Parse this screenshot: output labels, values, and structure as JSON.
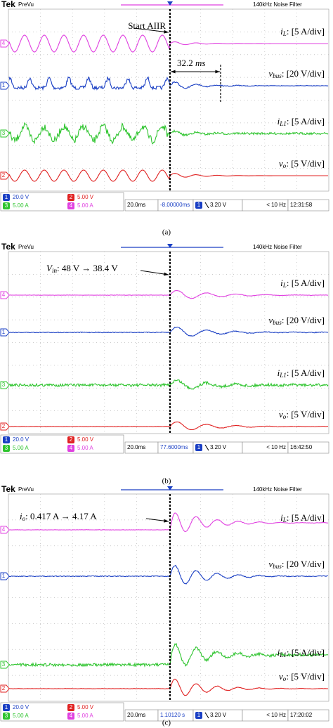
{
  "panels": [
    {
      "caption": "(a)",
      "header": {
        "brand": "Tek",
        "mode": "PreVu",
        "filter": "140kHz  Noise Filter"
      },
      "markers": [
        "4",
        "1",
        "3",
        "2"
      ],
      "traces": [
        {
          "symbol": "i",
          "sub": "L",
          "scale": ": [5 A/div]"
        },
        {
          "symbol": "v",
          "sub": "bus",
          "scale": ": [20 V/div]"
        },
        {
          "symbol": "i",
          "sub": "L1",
          "scale": ": [5 A/div]"
        },
        {
          "symbol": "v",
          "sub": "o",
          "scale": ": [5 V/div]"
        }
      ],
      "annotations": [
        {
          "text": "Start AIIR"
        },
        {
          "text": "32.2 ",
          "unit": "ms"
        }
      ],
      "status": {
        "channels": [
          {
            "num": "1",
            "scale": "20.0 V"
          },
          {
            "num": "2",
            "scale": "5.00 V"
          },
          {
            "num": "3",
            "scale": "5.00 A"
          },
          {
            "num": "4",
            "scale": "5.00 A"
          }
        ],
        "timebase": "20.0ms",
        "position": "-8.00000ms",
        "trigger_channel": "1",
        "trigger_level": "3.20 V",
        "frequency": "< 10 Hz",
        "time": "12:31:58"
      }
    },
    {
      "caption": "(b)",
      "header": {
        "brand": "Tek",
        "mode": "PreVu",
        "filter": "140kHz  Noise Filter"
      },
      "markers": [
        "4",
        "1",
        "3",
        "2"
      ],
      "traces": [
        {
          "symbol": "i",
          "sub": "L",
          "scale": ": [5 A/div]"
        },
        {
          "symbol": "v",
          "sub": "bus",
          "scale": ": [20 V/div]"
        },
        {
          "symbol": "i",
          "sub": "L1",
          "scale": ": [5 A/div]"
        },
        {
          "symbol": "v",
          "sub": "o",
          "scale": ": [5 V/div]"
        }
      ],
      "annotations": [
        {
          "symbol": "V",
          "sub": "in",
          "text": ": 48 V → 38.4 V"
        }
      ],
      "status": {
        "channels": [
          {
            "num": "1",
            "scale": "20.0 V"
          },
          {
            "num": "2",
            "scale": "5.00 V"
          },
          {
            "num": "3",
            "scale": "5.00 A"
          },
          {
            "num": "4",
            "scale": "5.00 A"
          }
        ],
        "timebase": "20.0ms",
        "position": "77.6000ms",
        "trigger_channel": "1",
        "trigger_level": "3.20 V",
        "frequency": "< 10 Hz",
        "time": "16:42:50"
      }
    },
    {
      "caption": "(c)",
      "header": {
        "brand": "Tek",
        "mode": "PreVu",
        "filter": "140kHz  Noise Filter"
      },
      "markers": [
        "4",
        "1",
        "3",
        "2"
      ],
      "traces": [
        {
          "symbol": "i",
          "sub": "L",
          "scale": ": [5 A/div]"
        },
        {
          "symbol": "v",
          "sub": "bus",
          "scale": ": [20 V/div]"
        },
        {
          "symbol": "i",
          "sub": "L1",
          "scale": ": [5 A/div]"
        },
        {
          "symbol": "v",
          "sub": "o",
          "scale": ": [5 V/div]"
        }
      ],
      "annotations": [
        {
          "symbol": "i",
          "sub": "o",
          "text": ": 0.417 A → 4.17 A"
        }
      ],
      "status": {
        "channels": [
          {
            "num": "1",
            "scale": "20.0 V"
          },
          {
            "num": "2",
            "scale": "5.00 V"
          },
          {
            "num": "3",
            "scale": "5.00 A"
          },
          {
            "num": "4",
            "scale": "5.00 A"
          }
        ],
        "timebase": "20.0ms",
        "position": "1.10120 s",
        "trigger_channel": "1",
        "trigger_level": "3.20 V",
        "frequency": "< 10 Hz",
        "time": "17:20:02"
      }
    }
  ]
}
